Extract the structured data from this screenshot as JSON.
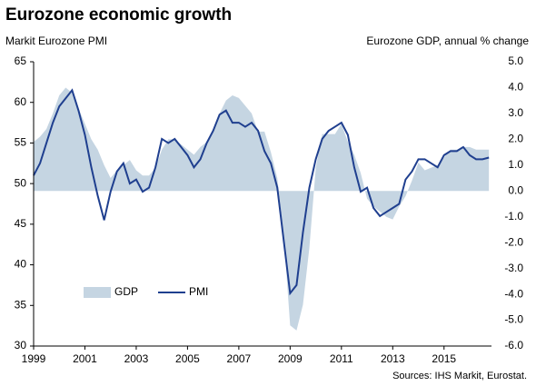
{
  "chart_data": {
    "type": "line",
    "title": "Eurozone economic growth",
    "y_label": "Markit Eurozone PMI",
    "y2_label": "Eurozone GDP, annual % change",
    "source": "Sources: IHS Markit, Eurostat.",
    "x": [
      1999.0,
      1999.25,
      1999.5,
      1999.75,
      2000.0,
      2000.25,
      2000.5,
      2000.75,
      2001.0,
      2001.25,
      2001.5,
      2001.75,
      2002.0,
      2002.25,
      2002.5,
      2002.75,
      2003.0,
      2003.25,
      2003.5,
      2003.75,
      2004.0,
      2004.25,
      2004.5,
      2004.75,
      2005.0,
      2005.25,
      2005.5,
      2005.75,
      2006.0,
      2006.25,
      2006.5,
      2006.75,
      2007.0,
      2007.25,
      2007.5,
      2007.75,
      2008.0,
      2008.25,
      2008.5,
      2008.75,
      2009.0,
      2009.25,
      2009.5,
      2009.75,
      2010.0,
      2010.25,
      2010.5,
      2010.75,
      2011.0,
      2011.25,
      2011.5,
      2011.75,
      2012.0,
      2012.25,
      2012.5,
      2012.75,
      2013.0,
      2013.25,
      2013.5,
      2013.75,
      2014.0,
      2014.25,
      2014.5,
      2014.75,
      2015.0,
      2015.25,
      2015.5,
      2015.75,
      2016.0,
      2016.25,
      2016.5,
      2016.75
    ],
    "series": [
      {
        "name": "GDP",
        "color": "#c5d5e2",
        "axis": "y2",
        "kind": "area",
        "values": [
          1.9,
          2.1,
          2.4,
          3.0,
          3.7,
          4.0,
          3.8,
          3.2,
          2.6,
          2.0,
          1.6,
          1.0,
          0.5,
          0.8,
          1.0,
          1.2,
          0.8,
          0.6,
          0.6,
          0.9,
          1.6,
          2.0,
          2.0,
          1.8,
          1.6,
          1.4,
          1.7,
          1.9,
          2.4,
          3.0,
          3.5,
          3.7,
          3.6,
          3.3,
          3.0,
          2.3,
          2.3,
          1.5,
          0.5,
          -1.7,
          -5.2,
          -5.4,
          -4.4,
          -2.2,
          0.9,
          2.2,
          2.2,
          2.2,
          2.6,
          1.9,
          1.4,
          0.7,
          -0.3,
          -0.6,
          -0.8,
          -1.0,
          -1.1,
          -0.6,
          -0.2,
          0.4,
          1.1,
          0.8,
          0.9,
          1.0,
          1.3,
          1.6,
          1.6,
          1.7,
          1.7,
          1.6,
          1.6,
          1.6
        ]
      },
      {
        "name": "PMI",
        "color": "#1f3f8f",
        "kind": "line",
        "values": [
          51.0,
          52.5,
          55,
          57.5,
          59.5,
          60.5,
          61.5,
          59,
          56,
          52,
          48.5,
          45.5,
          49,
          51.5,
          52.5,
          50,
          50.5,
          49,
          49.5,
          52,
          55.5,
          55,
          55.5,
          54.5,
          53.5,
          52,
          53,
          55,
          56.5,
          58.5,
          59,
          57.5,
          57.5,
          57,
          57.5,
          56.5,
          54,
          52.5,
          49.5,
          43,
          36.5,
          37.5,
          44,
          49.5,
          53,
          55.5,
          56.5,
          57,
          57.5,
          56,
          52,
          49,
          49.5,
          47,
          46,
          46.5,
          47,
          47.5,
          50.5,
          51.5,
          53,
          53,
          52.5,
          52,
          53.5,
          54,
          54,
          54.5,
          53.5,
          53,
          53,
          53.2
        ]
      }
    ],
    "xlim": [
      1999,
      2016.85
    ],
    "xticks": [
      1999,
      2001,
      2003,
      2005,
      2007,
      2009,
      2011,
      2013,
      2015
    ],
    "ylim": [
      30,
      65
    ],
    "yticks": [
      30,
      35,
      40,
      45,
      50,
      55,
      60,
      65
    ],
    "y2lim": [
      -6,
      5
    ],
    "y2ticks": [
      {
        "value": 5,
        "label": "5.0"
      },
      {
        "value": 4,
        "label": "4.0"
      },
      {
        "value": 3,
        "label": "3.0"
      },
      {
        "value": 2,
        "label": "2.0"
      },
      {
        "value": 1,
        "label": "1.0"
      },
      {
        "value": 0,
        "label": "0.0"
      },
      {
        "value": -1,
        "label": "-1.0"
      },
      {
        "value": -2,
        "label": "-2.0"
      },
      {
        "value": -3,
        "label": "-3.0"
      },
      {
        "value": -4,
        "label": "-4.0"
      },
      {
        "value": -5,
        "label": "-5.0"
      },
      {
        "value": -6,
        "label": "-6.0"
      }
    ],
    "legend": "lower left",
    "grid": false
  }
}
